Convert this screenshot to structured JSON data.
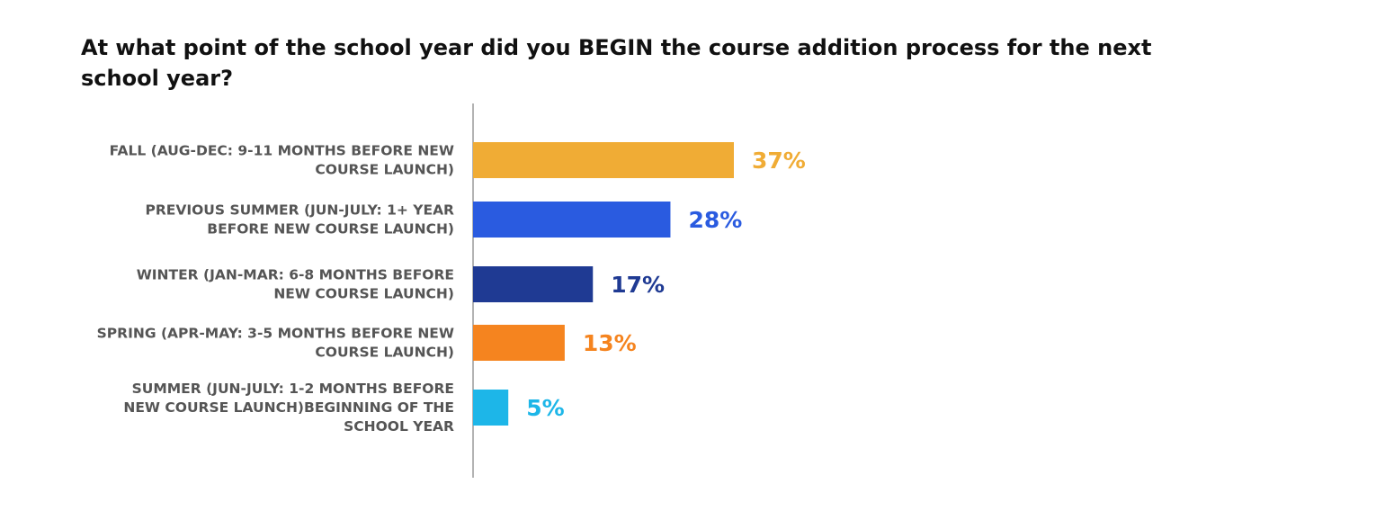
{
  "chart_data": {
    "type": "bar",
    "orientation": "horizontal",
    "title": "At what point of the school year did you BEGIN the course addition process for the next school year?",
    "categories": [
      [
        "FALL (AUG-DEC: 9-11 MONTHS BEFORE NEW",
        "COURSE LAUNCH)"
      ],
      [
        "PREVIOUS SUMMER (JUN-JULY: 1+ YEAR",
        "BEFORE NEW COURSE LAUNCH)"
      ],
      [
        "WINTER (JAN-MAR: 6-8 MONTHS BEFORE",
        "NEW COURSE LAUNCH)"
      ],
      [
        "SPRING (APR-MAY: 3-5 MONTHS BEFORE NEW",
        "COURSE LAUNCH)"
      ],
      [
        "SUMMER (JUN-JULY: 1-2 MONTHS BEFORE",
        "NEW COURSE LAUNCH)BEGINNING OF THE",
        "SCHOOL YEAR"
      ]
    ],
    "values": [
      37,
      28,
      17,
      13,
      5
    ],
    "value_labels": [
      "37%",
      "28%",
      "17%",
      "13%",
      "5%"
    ],
    "colors": [
      "#F0AC35",
      "#2A5BE0",
      "#1F3A93",
      "#F5841F",
      "#1DB6E8"
    ],
    "xlim": [
      0,
      100
    ],
    "grid": false,
    "legend": "none"
  }
}
